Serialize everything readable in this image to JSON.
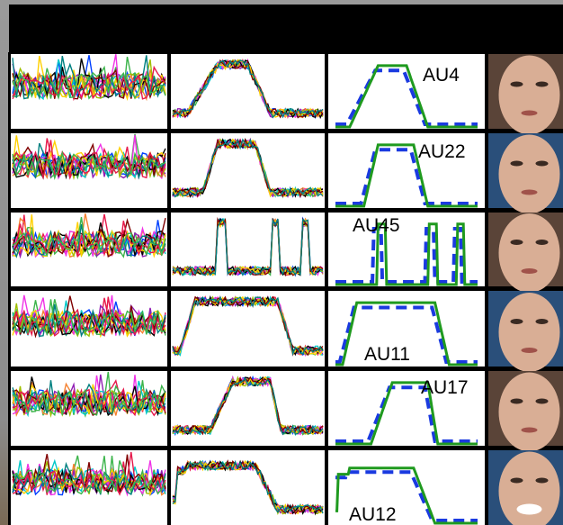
{
  "rows": [
    {
      "label": "AU4"
    },
    {
      "label": "AU22"
    },
    {
      "label": "AU45"
    },
    {
      "label": "AU11"
    },
    {
      "label": "AU17"
    },
    {
      "label": "AU12"
    }
  ]
}
